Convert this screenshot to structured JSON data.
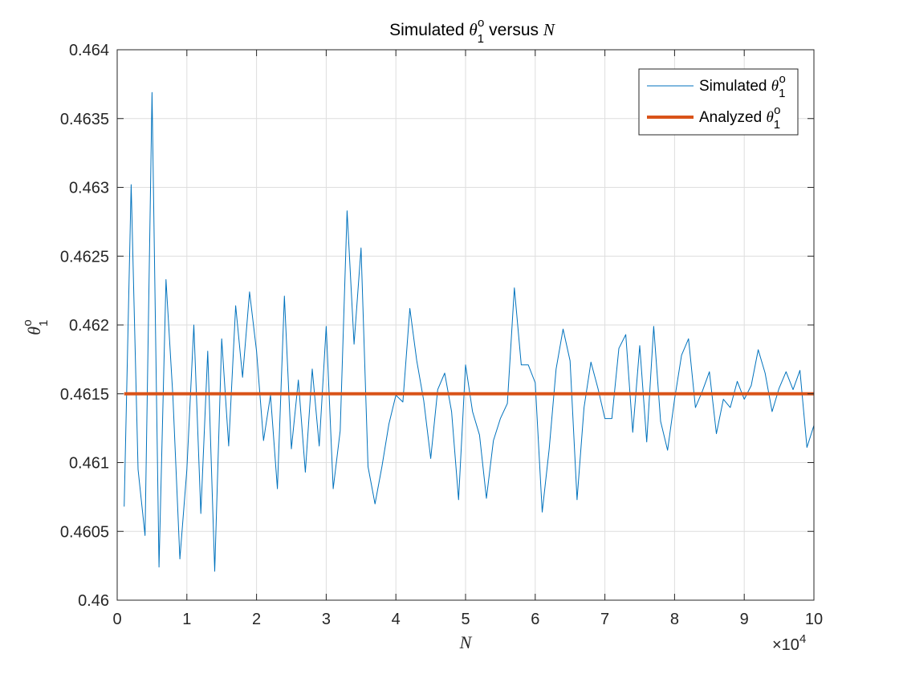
{
  "chart_data": {
    "type": "line",
    "title": {
      "prefix": "Simulated ",
      "symbol": "θ",
      "sub": "1",
      "sup": "o",
      "suffix": " versus ",
      "var": "N"
    },
    "xlabel": "N",
    "ylabel": {
      "symbol": "θ",
      "sub": "1",
      "sup": "o"
    },
    "xlim": [
      0,
      10
    ],
    "ylim": [
      0.46,
      0.464
    ],
    "x_exponent": {
      "base": "×10",
      "power": "4"
    },
    "x_ticks": [
      "0",
      "1",
      "2",
      "3",
      "4",
      "5",
      "6",
      "7",
      "8",
      "9",
      "10"
    ],
    "x_tick_values": [
      0,
      1,
      2,
      3,
      4,
      5,
      6,
      7,
      8,
      9,
      10
    ],
    "y_ticks": [
      "0.46",
      "0.4605",
      "0.461",
      "0.4615",
      "0.462",
      "0.4625",
      "0.463",
      "0.4635",
      "0.464"
    ],
    "y_tick_values": [
      0.46,
      0.4605,
      0.461,
      0.4615,
      0.462,
      0.4625,
      0.463,
      0.4635,
      0.464
    ],
    "grid": true,
    "legend_position": "top-right",
    "series": [
      {
        "name": {
          "prefix": "Simulated ",
          "symbol": "θ",
          "sub": "1",
          "sup": "o"
        },
        "color": "#0072bd",
        "style": "thin",
        "x": [
          0.1,
          0.2,
          0.3,
          0.4,
          0.5,
          0.6,
          0.7,
          0.8,
          0.9,
          1.0,
          1.1,
          1.2,
          1.3,
          1.4,
          1.5,
          1.6,
          1.7,
          1.8,
          1.9,
          2.0,
          2.1,
          2.2,
          2.3,
          2.4,
          2.5,
          2.6,
          2.7,
          2.8,
          2.9,
          3.0,
          3.1,
          3.2,
          3.3,
          3.4,
          3.5,
          3.6,
          3.7,
          3.8,
          3.9,
          4.0,
          4.1,
          4.2,
          4.3,
          4.4,
          4.5,
          4.6,
          4.7,
          4.8,
          4.9,
          5.0,
          5.1,
          5.2,
          5.3,
          5.4,
          5.5,
          5.6,
          5.7,
          5.8,
          5.9,
          6.0,
          6.1,
          6.2,
          6.3,
          6.4,
          6.5,
          6.6,
          6.7,
          6.8,
          6.9,
          7.0,
          7.1,
          7.2,
          7.3,
          7.4,
          7.5,
          7.6,
          7.7,
          7.8,
          7.9,
          8.0,
          8.1,
          8.2,
          8.3,
          8.4,
          8.5,
          8.6,
          8.7,
          8.8,
          8.9,
          9.0,
          9.1,
          9.2,
          9.3,
          9.4,
          9.5,
          9.6,
          9.7,
          9.8,
          9.9,
          10.0
        ],
        "y": [
          0.46068,
          0.46302,
          0.46095,
          0.46047,
          0.46369,
          0.46024,
          0.46233,
          0.46148,
          0.4603,
          0.46095,
          0.462,
          0.46063,
          0.46181,
          0.46021,
          0.4619,
          0.46112,
          0.46214,
          0.46162,
          0.46224,
          0.46181,
          0.46116,
          0.46149,
          0.46081,
          0.46221,
          0.4611,
          0.4616,
          0.46093,
          0.46168,
          0.46112,
          0.46199,
          0.46081,
          0.46123,
          0.46283,
          0.46186,
          0.46256,
          0.46097,
          0.4607,
          0.46097,
          0.46128,
          0.46149,
          0.46144,
          0.46212,
          0.46174,
          0.46145,
          0.46103,
          0.46153,
          0.46165,
          0.46137,
          0.46073,
          0.46171,
          0.46137,
          0.4612,
          0.46074,
          0.46116,
          0.46132,
          0.46143,
          0.46227,
          0.46171,
          0.46171,
          0.46158,
          0.46064,
          0.4611,
          0.46168,
          0.46197,
          0.46174,
          0.46073,
          0.4614,
          0.46173,
          0.46154,
          0.46132,
          0.46132,
          0.46183,
          0.46193,
          0.46122,
          0.46185,
          0.46115,
          0.46199,
          0.4613,
          0.46109,
          0.46146,
          0.46178,
          0.4619,
          0.4614,
          0.46152,
          0.46166,
          0.46121,
          0.46146,
          0.4614,
          0.46159,
          0.46146,
          0.46156,
          0.46182,
          0.46165,
          0.46137,
          0.46154,
          0.46166,
          0.46153,
          0.46167,
          0.46111,
          0.46127
        ]
      },
      {
        "name": {
          "prefix": "Analyzed ",
          "symbol": "θ",
          "sub": "1",
          "sup": "o"
        },
        "color": "#d95319",
        "style": "thick",
        "x": [
          0.1,
          10
        ],
        "y": [
          0.4615,
          0.4615
        ]
      }
    ]
  }
}
